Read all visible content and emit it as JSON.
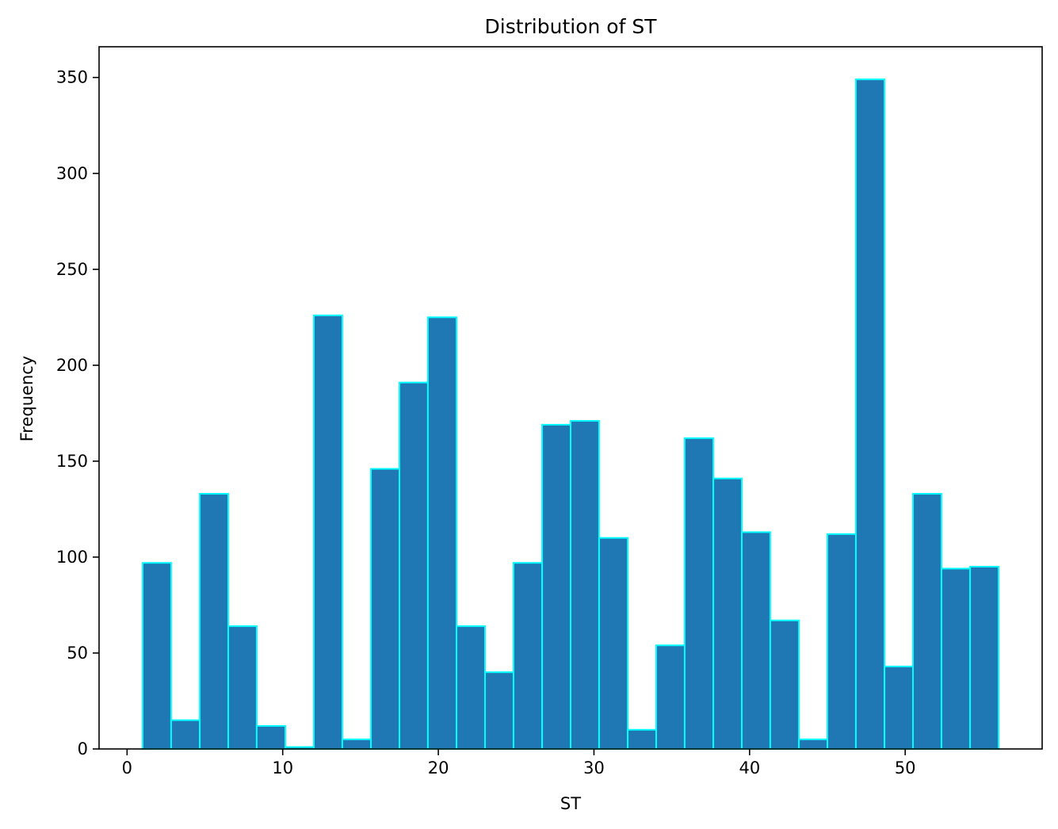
{
  "chart_data": {
    "type": "bar",
    "title": "Distribution of ST",
    "xlabel": "ST",
    "ylabel": "Frequency",
    "xlim": [
      -1.8,
      58.8
    ],
    "ylim": [
      0,
      366
    ],
    "x_ticks": [
      0,
      10,
      20,
      30,
      40,
      50
    ],
    "y_ticks": [
      0,
      50,
      100,
      150,
      200,
      250,
      300,
      350
    ],
    "grid": false,
    "colors": {
      "bar_fill": "#1f77b4",
      "bar_edge": "#00ffff",
      "axis": "#000000"
    },
    "bins": [
      {
        "start": 1.0,
        "end": 2.83,
        "count": 97
      },
      {
        "start": 2.83,
        "end": 4.67,
        "count": 15
      },
      {
        "start": 4.67,
        "end": 6.5,
        "count": 133
      },
      {
        "start": 6.5,
        "end": 8.33,
        "count": 64
      },
      {
        "start": 8.33,
        "end": 10.17,
        "count": 12
      },
      {
        "start": 10.17,
        "end": 12.0,
        "count": 1
      },
      {
        "start": 12.0,
        "end": 13.83,
        "count": 226
      },
      {
        "start": 13.83,
        "end": 15.67,
        "count": 5
      },
      {
        "start": 15.67,
        "end": 17.5,
        "count": 146
      },
      {
        "start": 17.5,
        "end": 19.33,
        "count": 191
      },
      {
        "start": 19.33,
        "end": 21.17,
        "count": 225
      },
      {
        "start": 21.17,
        "end": 23.0,
        "count": 64
      },
      {
        "start": 23.0,
        "end": 24.83,
        "count": 40
      },
      {
        "start": 24.83,
        "end": 26.67,
        "count": 97
      },
      {
        "start": 26.67,
        "end": 28.5,
        "count": 169
      },
      {
        "start": 28.5,
        "end": 30.33,
        "count": 171
      },
      {
        "start": 30.33,
        "end": 32.17,
        "count": 110
      },
      {
        "start": 32.17,
        "end": 34.0,
        "count": 10
      },
      {
        "start": 34.0,
        "end": 35.83,
        "count": 54
      },
      {
        "start": 35.83,
        "end": 37.67,
        "count": 162
      },
      {
        "start": 37.67,
        "end": 39.5,
        "count": 141
      },
      {
        "start": 39.5,
        "end": 41.33,
        "count": 113
      },
      {
        "start": 41.33,
        "end": 43.17,
        "count": 67
      },
      {
        "start": 43.17,
        "end": 45.0,
        "count": 5
      },
      {
        "start": 45.0,
        "end": 46.83,
        "count": 112
      },
      {
        "start": 46.83,
        "end": 48.67,
        "count": 349
      },
      {
        "start": 48.67,
        "end": 50.5,
        "count": 43
      },
      {
        "start": 50.5,
        "end": 52.33,
        "count": 133
      },
      {
        "start": 52.33,
        "end": 54.17,
        "count": 94
      },
      {
        "start": 54.17,
        "end": 56.0,
        "count": 95
      }
    ]
  }
}
